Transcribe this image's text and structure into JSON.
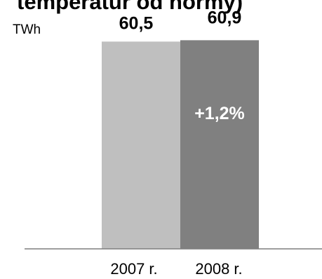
{
  "chart_data": {
    "type": "bar",
    "title": "temperatur od normy)",
    "unit_label": "TWh",
    "categories": [
      "2007 r.",
      "2008 r."
    ],
    "values": [
      60.5,
      60.9
    ],
    "value_labels": [
      "60,5",
      "60,9"
    ],
    "annotation": "+1,2%",
    "ylim": [
      0,
      62
    ],
    "grid": false,
    "colors": [
      "#bfbfbf",
      "#808080"
    ],
    "annotation_color": "#ffffff"
  }
}
